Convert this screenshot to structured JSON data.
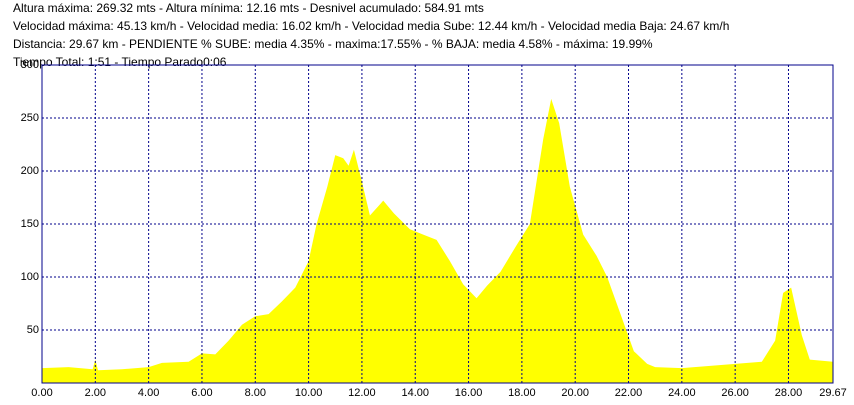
{
  "chart_data": {
    "type": "area",
    "header_lines": [
      "Altura máxima: 269.32 mts - Altura mínima: 12.16 mts - Desnivel acumulado: 584.91 mts",
      "Velocidad máxima: 45.13 km/h - Velocidad media: 16.02 km/h - Velocidad media Sube: 12.44 km/h - Velocidad media Baja: 24.67 km/h",
      "Distancia: 29.67 km - PENDIENTE  % SUBE: media 4.35% - maxima:17.55%  - % BAJA: media 4.58% - máxima: 19.99%",
      "Tiempo Total: 1:51 - Tiempo Parado0:06"
    ],
    "x": [
      0,
      1,
      1.9,
      2.0,
      2.1,
      3,
      4,
      4.5,
      5.5,
      6,
      6.5,
      7,
      7.5,
      8,
      8.5,
      9,
      9.5,
      10,
      10.3,
      10.7,
      11,
      11.3,
      11.5,
      11.7,
      12,
      12.3,
      12.8,
      13.2,
      13.8,
      14.3,
      14.8,
      15.3,
      15.8,
      16.3,
      16.7,
      17.2,
      17.8,
      18.3,
      18.8,
      19.1,
      19.4,
      19.8,
      20.3,
      20.8,
      21.2,
      21.7,
      22.2,
      22.7,
      23,
      24,
      25,
      26,
      27,
      27.5,
      27.8,
      28.1,
      28.5,
      28.8,
      29.67
    ],
    "y": [
      14,
      15,
      13,
      22,
      12,
      13,
      15,
      19,
      20,
      28,
      27,
      40,
      55,
      63,
      65,
      77,
      90,
      115,
      150,
      185,
      215,
      212,
      205,
      220,
      190,
      158,
      172,
      160,
      145,
      140,
      135,
      115,
      93,
      80,
      92,
      105,
      130,
      150,
      230,
      268,
      245,
      185,
      140,
      120,
      100,
      65,
      30,
      18,
      15,
      14,
      16,
      18,
      20,
      40,
      85,
      90,
      45,
      22,
      20
    ],
    "color": "#ffff00",
    "xlim": [
      0,
      29.67
    ],
    "xticks": [
      {
        "value": 0,
        "label": "0.00"
      },
      {
        "value": 2,
        "label": "2.00"
      },
      {
        "value": 4,
        "label": "4.00"
      },
      {
        "value": 6,
        "label": "6.00"
      },
      {
        "value": 8,
        "label": "8.00"
      },
      {
        "value": 10,
        "label": "10.00"
      },
      {
        "value": 12,
        "label": "12.00"
      },
      {
        "value": 14,
        "label": "14.00"
      },
      {
        "value": 16,
        "label": "16.00"
      },
      {
        "value": 18,
        "label": "18.00"
      },
      {
        "value": 20,
        "label": "20.00"
      },
      {
        "value": 22,
        "label": "22.00"
      },
      {
        "value": 24,
        "label": "24.00"
      },
      {
        "value": 26,
        "label": "26.00"
      },
      {
        "value": 28,
        "label": "28.00"
      },
      29.67
    ],
    "ylim": [
      0,
      300
    ],
    "yticks": [
      50,
      100,
      150,
      200,
      250,
      300
    ],
    "grid": true
  }
}
